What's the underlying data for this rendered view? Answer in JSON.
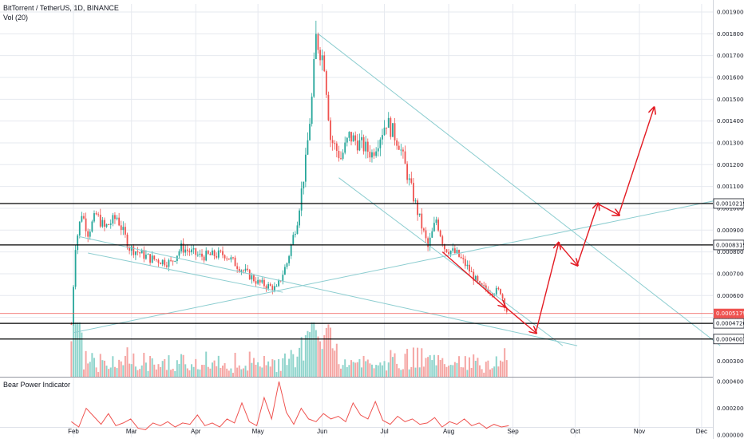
{
  "header": {
    "symbol": "BitTorrent / TetherUS, 1D, BINANCE",
    "volume": "Vol (20)",
    "indicator": "Bear Power Indicator"
  },
  "colors": {
    "up": "#26a69a",
    "down": "#ef5350",
    "vol_up": "#8fd4cc",
    "vol_down": "#f5a6a4",
    "trend": "#8ccdd0",
    "arrow": "#e31b23",
    "level": "#000000",
    "current": "#ef5350",
    "grid": "#e6e9ef"
  },
  "chart_data": [
    {
      "type": "candlestick",
      "title": "BitTorrent / TetherUS, 1D, BINANCE",
      "x_ticks": [
        "Feb",
        "Mar",
        "Apr",
        "May",
        "Jun",
        "Jul",
        "Aug",
        "Sep",
        "Oct",
        "Nov",
        "Dec"
      ],
      "y_ticks": [
        "0.0019000",
        "0.0018000",
        "0.0017000",
        "0.0016000",
        "0.0015000",
        "0.0014000",
        "0.0013000",
        "0.0012000",
        "0.0011000",
        "0.0010000",
        "0.0009000",
        "0.0008000",
        "0.0007000",
        "0.0006000",
        "0.0005000",
        "0.0004000"
      ],
      "ylim": [
        0.00037,
        0.00193
      ],
      "price_path": [
        {
          "date": "2019-01-31",
          "close": 0.00047
        },
        {
          "date": "2019-02-02",
          "close": 0.00083
        },
        {
          "date": "2019-02-05",
          "close": 0.00098
        },
        {
          "date": "2019-02-08",
          "close": 0.00089
        },
        {
          "date": "2019-02-12",
          "close": 0.00097
        },
        {
          "date": "2019-02-16",
          "close": 0.00091
        },
        {
          "date": "2019-02-22",
          "close": 0.00096
        },
        {
          "date": "2019-02-28",
          "close": 0.00082
        },
        {
          "date": "2019-03-10",
          "close": 0.00077
        },
        {
          "date": "2019-03-20",
          "close": 0.00075
        },
        {
          "date": "2019-03-25",
          "close": 0.00082
        },
        {
          "date": "2019-04-03",
          "close": 0.00078
        },
        {
          "date": "2019-04-15",
          "close": 0.00079
        },
        {
          "date": "2019-04-22",
          "close": 0.00073
        },
        {
          "date": "2019-05-01",
          "close": 0.00066
        },
        {
          "date": "2019-05-10",
          "close": 0.00063
        },
        {
          "date": "2019-05-15",
          "close": 0.00075
        },
        {
          "date": "2019-05-20",
          "close": 0.00095
        },
        {
          "date": "2019-05-24",
          "close": 0.00121
        },
        {
          "date": "2019-05-27",
          "close": 0.0015
        },
        {
          "date": "2019-05-29",
          "close": 0.00178
        },
        {
          "date": "2019-06-02",
          "close": 0.00167
        },
        {
          "date": "2019-06-05",
          "close": 0.00132
        },
        {
          "date": "2019-06-10",
          "close": 0.00123
        },
        {
          "date": "2019-06-14",
          "close": 0.00133
        },
        {
          "date": "2019-06-20",
          "close": 0.00129
        },
        {
          "date": "2019-06-25",
          "close": 0.00125
        },
        {
          "date": "2019-07-02",
          "close": 0.0014
        },
        {
          "date": "2019-07-08",
          "close": 0.0013
        },
        {
          "date": "2019-07-13",
          "close": 0.00112
        },
        {
          "date": "2019-07-18",
          "close": 0.00095
        },
        {
          "date": "2019-07-22",
          "close": 0.00082
        },
        {
          "date": "2019-07-26",
          "close": 0.00095
        },
        {
          "date": "2019-07-30",
          "close": 0.00082
        },
        {
          "date": "2019-08-05",
          "close": 0.00079
        },
        {
          "date": "2019-08-10",
          "close": 0.00073
        },
        {
          "date": "2019-08-16",
          "close": 0.00064
        },
        {
          "date": "2019-08-22",
          "close": 0.00062
        },
        {
          "date": "2019-08-26",
          "close": 0.00062
        },
        {
          "date": "2019-08-29",
          "close": 0.00053
        }
      ],
      "high": {
        "date": "2019-05-29",
        "value": 0.00186
      },
      "horizontal_levels": [
        {
          "label": "0.0010219",
          "value": 0.0010219
        },
        {
          "label": "0.0008319",
          "value": 0.0008319
        },
        {
          "label": "0.0004726",
          "value": 0.0004726
        },
        {
          "label": "0.0004007",
          "value": 0.0004007
        }
      ],
      "current_price": {
        "label": "0.0005179",
        "value": 0.0005179
      },
      "trend_lines": [
        {
          "from": {
            "date": "2019-02-08",
            "value": 0.000795
          },
          "to": {
            "date": "2019-05-13",
            "value": 0.000615
          }
        },
        {
          "from": {
            "date": "2019-02-01",
            "value": 0.00043
          },
          "to": {
            "date": "2019-12-10",
            "value": 0.00104
          }
        },
        {
          "from": {
            "date": "2019-05-30",
            "value": 0.0018
          },
          "to": {
            "date": "2019-12-10",
            "value": 0.00037
          }
        },
        {
          "from": {
            "date": "2019-06-09",
            "value": 0.00114
          },
          "to": {
            "date": "2019-09-25",
            "value": 0.00037
          }
        },
        {
          "from": {
            "date": "2019-02-04",
            "value": 0.00087
          },
          "to": {
            "date": "2019-10-02",
            "value": 0.00037
          }
        }
      ],
      "projection_arrows": [
        {
          "date": "2019-07-29",
          "value": 0.0008
        },
        {
          "date": "2019-08-28",
          "value": 0.00055
        },
        {
          "date": "2019-09-12",
          "value": 0.00043
        },
        {
          "date": "2019-09-23",
          "value": 0.00084
        },
        {
          "date": "2019-10-02",
          "value": 0.00074
        },
        {
          "date": "2019-10-12",
          "value": 0.00102
        },
        {
          "date": "2019-10-22",
          "value": 0.00097
        },
        {
          "date": "2019-11-08",
          "value": 0.00146
        }
      ]
    },
    {
      "type": "bar",
      "title": "Vol (20)",
      "y_ticks": [
        "0.0003000"
      ],
      "note": "volume histogram colored by candle direction"
    },
    {
      "type": "line",
      "title": "Bear Power Indicator",
      "y_ticks": [
        "0.0004000",
        "0.0002000",
        "0.0000000"
      ],
      "ylim": [
        0,
        0.00042
      ],
      "values": [
        0.0001,
        6e-05,
        0.0002,
        0.00014,
        8e-05,
        0.00016,
        7e-05,
        9e-05,
        0.00012,
        5e-05,
        4e-05,
        9e-05,
        7e-05,
        0.0001,
        6e-05,
        9e-05,
        8e-05,
        0.00015,
        7e-05,
        9e-05,
        6e-05,
        0.00012,
        9e-05,
        0.00024,
        0.0001,
        7e-05,
        0.00028,
        0.00012,
        0.0004,
        0.00017,
        8e-05,
        0.0002,
        0.00012,
        0.0001,
        0.00016,
        0.00012,
        0.00014,
        0.0001,
        0.00024,
        0.00015,
        0.00012,
        0.00025,
        0.00011,
        8e-05,
        0.00014,
        0.0001,
        0.00012,
        8e-05,
        9e-05,
        0.00013,
        6e-05,
        0.0001,
        8e-05,
        0.00012,
        7e-05,
        9e-05,
        5e-05,
        8e-05,
        6e-05,
        7e-05
      ]
    }
  ]
}
